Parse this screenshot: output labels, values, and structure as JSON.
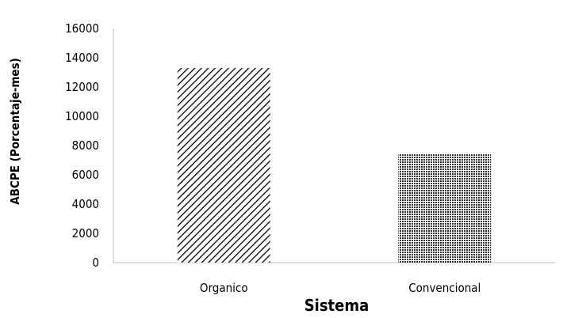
{
  "chart_data": {
    "type": "bar",
    "categories": [
      "Organico",
      "Convencional"
    ],
    "values": [
      13300,
      7400
    ],
    "xlabel": "Sistema",
    "ylabel": "ABCPE (Porcentaje-mes)",
    "ylim": [
      0,
      16000
    ],
    "yticks": [
      0,
      2000,
      4000,
      6000,
      8000,
      10000,
      12000,
      14000,
      16000
    ],
    "grid": false,
    "legend": "none",
    "bar_patterns": [
      "diagonal-hatch",
      "crosshatch"
    ],
    "colors": {
      "bar_pattern": "#000000",
      "axis": "#bfbfbf",
      "background": "#ffffff"
    }
  }
}
